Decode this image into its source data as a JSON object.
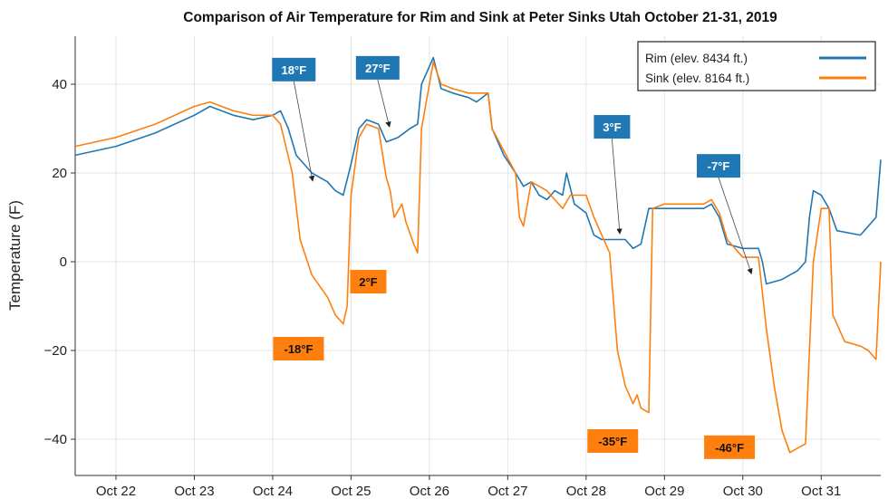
{
  "chart_data": {
    "type": "line",
    "title": "Comparison of Air Temperature for Rim and Sink at Peter Sinks Utah October 21-31, 2019",
    "xlabel": "",
    "ylabel": "Temperature (F)",
    "x_units": "days since Oct 21 00:00",
    "xlim": [
      0.48,
      10.76
    ],
    "ylim": [
      -48,
      50
    ],
    "grid": true,
    "legend_position": "top-right",
    "x_ticks": [
      {
        "value": 1,
        "label": "Oct 22"
      },
      {
        "value": 2,
        "label": "Oct 23"
      },
      {
        "value": 3,
        "label": "Oct 24"
      },
      {
        "value": 4,
        "label": "Oct 25"
      },
      {
        "value": 5,
        "label": "Oct 26"
      },
      {
        "value": 6,
        "label": "Oct 27"
      },
      {
        "value": 7,
        "label": "Oct 28"
      },
      {
        "value": 8,
        "label": "Oct 29"
      },
      {
        "value": 9,
        "label": "Oct 30"
      },
      {
        "value": 10,
        "label": "Oct 31"
      }
    ],
    "y_ticks": [
      {
        "value": 40,
        "label": "40"
      },
      {
        "value": 20,
        "label": "20"
      },
      {
        "value": 0,
        "label": "0"
      },
      {
        "value": -20,
        "label": "−20"
      },
      {
        "value": -40,
        "label": "−40"
      }
    ],
    "series": [
      {
        "name": "Rim (elev. 8434 ft.)",
        "color": "#1f77b4",
        "points": [
          [
            0.48,
            24
          ],
          [
            1.0,
            26
          ],
          [
            1.5,
            29
          ],
          [
            2.0,
            33
          ],
          [
            2.2,
            35
          ],
          [
            2.5,
            33
          ],
          [
            2.75,
            32
          ],
          [
            3.0,
            33
          ],
          [
            3.1,
            34
          ],
          [
            3.2,
            30
          ],
          [
            3.3,
            24
          ],
          [
            3.5,
            20
          ],
          [
            3.7,
            18
          ],
          [
            3.8,
            16
          ],
          [
            3.9,
            15
          ],
          [
            4.0,
            22
          ],
          [
            4.1,
            30
          ],
          [
            4.2,
            32
          ],
          [
            4.35,
            31
          ],
          [
            4.45,
            27
          ],
          [
            4.6,
            28
          ],
          [
            4.75,
            30
          ],
          [
            4.85,
            31
          ],
          [
            4.9,
            40
          ],
          [
            5.0,
            44
          ],
          [
            5.05,
            46
          ],
          [
            5.15,
            39
          ],
          [
            5.3,
            38
          ],
          [
            5.5,
            37
          ],
          [
            5.6,
            36
          ],
          [
            5.75,
            38
          ],
          [
            5.8,
            30
          ],
          [
            5.95,
            24
          ],
          [
            6.1,
            20
          ],
          [
            6.2,
            17
          ],
          [
            6.3,
            18
          ],
          [
            6.4,
            15
          ],
          [
            6.5,
            14
          ],
          [
            6.6,
            16
          ],
          [
            6.7,
            15
          ],
          [
            6.75,
            20
          ],
          [
            6.85,
            13
          ],
          [
            7.0,
            11
          ],
          [
            7.1,
            6
          ],
          [
            7.2,
            5
          ],
          [
            7.5,
            5
          ],
          [
            7.6,
            3
          ],
          [
            7.7,
            4
          ],
          [
            7.8,
            12
          ],
          [
            8.0,
            12
          ],
          [
            8.5,
            12
          ],
          [
            8.6,
            13
          ],
          [
            8.7,
            10
          ],
          [
            8.8,
            4
          ],
          [
            9.0,
            3
          ],
          [
            9.2,
            3
          ],
          [
            9.25,
            0
          ],
          [
            9.3,
            -5
          ],
          [
            9.5,
            -4
          ],
          [
            9.7,
            -2
          ],
          [
            9.8,
            0
          ],
          [
            9.85,
            10
          ],
          [
            9.9,
            16
          ],
          [
            10.0,
            15
          ],
          [
            10.1,
            12
          ],
          [
            10.2,
            7
          ],
          [
            10.5,
            6
          ],
          [
            10.6,
            8
          ],
          [
            10.7,
            10
          ],
          [
            10.76,
            23
          ]
        ]
      },
      {
        "name": "Sink (elev. 8164 ft.)",
        "color": "#ff7f0e",
        "points": [
          [
            0.48,
            26
          ],
          [
            1.0,
            28
          ],
          [
            1.5,
            31
          ],
          [
            2.0,
            35
          ],
          [
            2.2,
            36
          ],
          [
            2.5,
            34
          ],
          [
            2.75,
            33
          ],
          [
            3.0,
            33
          ],
          [
            3.1,
            31
          ],
          [
            3.25,
            20
          ],
          [
            3.35,
            5
          ],
          [
            3.5,
            -3
          ],
          [
            3.7,
            -8
          ],
          [
            3.8,
            -12
          ],
          [
            3.9,
            -14
          ],
          [
            3.95,
            -10
          ],
          [
            4.0,
            15
          ],
          [
            4.1,
            28
          ],
          [
            4.2,
            31
          ],
          [
            4.35,
            30
          ],
          [
            4.45,
            19
          ],
          [
            4.5,
            16
          ],
          [
            4.55,
            10
          ],
          [
            4.65,
            13
          ],
          [
            4.7,
            9
          ],
          [
            4.8,
            4
          ],
          [
            4.85,
            2
          ],
          [
            4.9,
            30
          ],
          [
            5.0,
            40
          ],
          [
            5.05,
            45
          ],
          [
            5.15,
            40
          ],
          [
            5.3,
            39
          ],
          [
            5.5,
            38
          ],
          [
            5.75,
            38
          ],
          [
            5.8,
            30
          ],
          [
            5.95,
            25
          ],
          [
            6.1,
            20
          ],
          [
            6.15,
            10
          ],
          [
            6.2,
            8
          ],
          [
            6.3,
            18
          ],
          [
            6.5,
            16
          ],
          [
            6.6,
            14
          ],
          [
            6.7,
            12
          ],
          [
            6.8,
            15
          ],
          [
            7.0,
            15
          ],
          [
            7.1,
            10
          ],
          [
            7.2,
            6
          ],
          [
            7.3,
            2
          ],
          [
            7.4,
            -20
          ],
          [
            7.5,
            -28
          ],
          [
            7.6,
            -32
          ],
          [
            7.65,
            -30
          ],
          [
            7.7,
            -33
          ],
          [
            7.8,
            -34
          ],
          [
            7.85,
            12
          ],
          [
            8.0,
            13
          ],
          [
            8.5,
            13
          ],
          [
            8.6,
            14
          ],
          [
            8.7,
            11
          ],
          [
            8.8,
            5
          ],
          [
            9.0,
            1
          ],
          [
            9.2,
            1
          ],
          [
            9.3,
            -15
          ],
          [
            9.4,
            -28
          ],
          [
            9.5,
            -38
          ],
          [
            9.6,
            -43
          ],
          [
            9.7,
            -42
          ],
          [
            9.8,
            -41
          ],
          [
            9.85,
            -20
          ],
          [
            9.9,
            0
          ],
          [
            10.0,
            12
          ],
          [
            10.1,
            12
          ],
          [
            10.15,
            -12
          ],
          [
            10.3,
            -18
          ],
          [
            10.5,
            -19
          ],
          [
            10.6,
            -20
          ],
          [
            10.7,
            -22
          ],
          [
            10.76,
            0
          ]
        ]
      }
    ],
    "annotations": [
      {
        "text": "18°F",
        "series": "Rim",
        "color": "#1f77b4",
        "at": [
          3.27,
          43.3
        ],
        "arrow_to": [
          3.51,
          18.2
        ]
      },
      {
        "text": "27°F",
        "series": "Rim",
        "color": "#1f77b4",
        "at": [
          4.34,
          43.7
        ],
        "arrow_to": [
          4.49,
          30.4
        ]
      },
      {
        "text": "3°F",
        "series": "Rim",
        "color": "#1f77b4",
        "at": [
          7.33,
          30.4
        ],
        "arrow_to": [
          7.43,
          6.3
        ]
      },
      {
        "text": "-7°F",
        "series": "Rim",
        "color": "#1f77b4",
        "at": [
          8.69,
          21.6
        ],
        "arrow_to": [
          9.11,
          -2.7
        ]
      },
      {
        "text": "-18°F",
        "series": "Sink",
        "color": "#ff7f0e",
        "at": [
          3.33,
          -19.6
        ]
      },
      {
        "text": "2°F",
        "series": "Sink",
        "color": "#ff7f0e",
        "at": [
          4.22,
          -4.5
        ]
      },
      {
        "text": "-35°F",
        "series": "Sink",
        "color": "#ff7f0e",
        "at": [
          7.34,
          -40.4
        ]
      },
      {
        "text": "-46°F",
        "series": "Sink",
        "color": "#ff7f0e",
        "at": [
          8.83,
          -41.8
        ]
      }
    ]
  }
}
